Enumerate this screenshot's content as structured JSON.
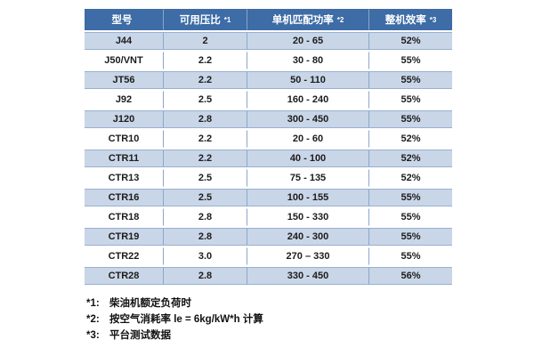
{
  "chart_data": {
    "type": "table",
    "title": "",
    "columns": [
      "型号",
      "可用压比 *1",
      "单机匹配功率 *2",
      "整机效率 *3"
    ],
    "rows": [
      [
        "J44",
        "2",
        "20 - 65",
        "52%"
      ],
      [
        "J50/VNT",
        "2.2",
        "30 - 80",
        "55%"
      ],
      [
        "JT56",
        "2.2",
        "50 - 110",
        "55%"
      ],
      [
        "J92",
        "2.5",
        "160 - 240",
        "55%"
      ],
      [
        "J120",
        "2.8",
        "300 - 450",
        "55%"
      ],
      [
        "CTR10",
        "2.2",
        "20 - 60",
        "52%"
      ],
      [
        "CTR11",
        "2.2",
        "40 - 100",
        "52%"
      ],
      [
        "CTR13",
        "2.5",
        "75 - 135",
        "52%"
      ],
      [
        "CTR16",
        "2.5",
        "100 - 155",
        "55%"
      ],
      [
        "CTR18",
        "2.8",
        "150 - 330",
        "55%"
      ],
      [
        "CTR19",
        "2.8",
        "240 - 300",
        "55%"
      ],
      [
        "CTR22",
        "3.0",
        "270 – 330",
        "55%"
      ],
      [
        "CTR28",
        "2.8",
        "330 - 450",
        "56%"
      ]
    ]
  },
  "table": {
    "columns": [
      {
        "label": "型号",
        "note": ""
      },
      {
        "label": "可用压比",
        "note": "*1"
      },
      {
        "label": "单机匹配功率",
        "note": "*2"
      },
      {
        "label": "整机效率",
        "note": "*3"
      }
    ],
    "rows": [
      [
        "J44",
        "2",
        "20 - 65",
        "52%"
      ],
      [
        "J50/VNT",
        "2.2",
        "30 - 80",
        "55%"
      ],
      [
        "JT56",
        "2.2",
        "50 - 110",
        "55%"
      ],
      [
        "J92",
        "2.5",
        "160 - 240",
        "55%"
      ],
      [
        "J120",
        "2.8",
        "300 - 450",
        "55%"
      ],
      [
        "CTR10",
        "2.2",
        "20 - 60",
        "52%"
      ],
      [
        "CTR11",
        "2.2",
        "40 - 100",
        "52%"
      ],
      [
        "CTR13",
        "2.5",
        "75 - 135",
        "52%"
      ],
      [
        "CTR16",
        "2.5",
        "100 - 155",
        "55%"
      ],
      [
        "CTR18",
        "2.8",
        "150 - 330",
        "55%"
      ],
      [
        "CTR19",
        "2.8",
        "240 - 300",
        "55%"
      ],
      [
        "CTR22",
        "3.0",
        "270 – 330",
        "55%"
      ],
      [
        "CTR28",
        "2.8",
        "330 - 450",
        "56%"
      ]
    ]
  },
  "footnotes": [
    {
      "marker": "*1:",
      "text": "柴油机额定负荷时"
    },
    {
      "marker": "*2:",
      "text": "按空气消耗率  le = 6kg/kW*h  计算"
    },
    {
      "marker": "*3:",
      "text": "平台测试数据"
    }
  ],
  "colors": {
    "header_bg": "#3D6CA6",
    "header_text": "#FFFFFF",
    "band_bg": "#C9D6E8",
    "row_bg": "#FFFFFF",
    "vline": "#8BA6CB",
    "hairline": "#9AB0D0",
    "text": "#1C1C1C"
  }
}
